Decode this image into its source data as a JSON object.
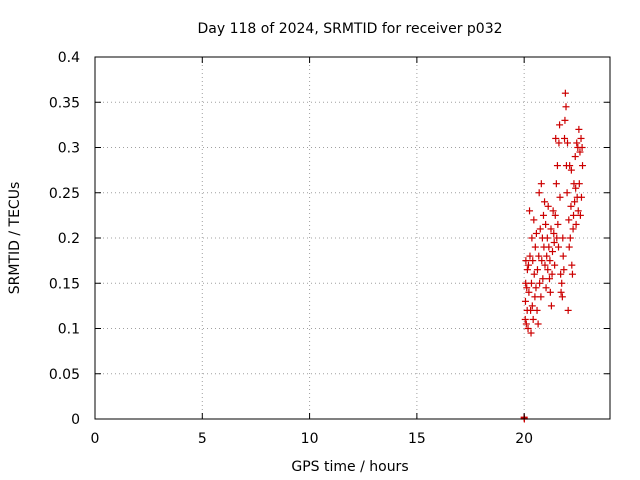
{
  "chart_data": {
    "type": "scatter",
    "title": "Day 118 of 2024, SRMTID for receiver p032",
    "xlabel": "GPS time / hours",
    "ylabel": "SRMTID / TECUs",
    "xlim": [
      0,
      24
    ],
    "ylim": [
      0,
      0.4
    ],
    "xticks": [
      0,
      5,
      10,
      15,
      20
    ],
    "xtick_labels": [
      "0",
      "5",
      "10",
      "15",
      "20"
    ],
    "yticks": [
      0,
      0.05,
      0.1,
      0.15,
      0.2,
      0.25,
      0.3,
      0.35,
      0.4
    ],
    "ytick_labels": [
      "0",
      "0.05",
      "0.1",
      "0.15",
      "0.2",
      "0.25",
      "0.3",
      "0.35",
      "0.4"
    ],
    "grid": true,
    "marker": "plus",
    "color": "#cc0000",
    "series": [
      {
        "values": [
          [
            20.0,
            0.001
          ],
          [
            20.0,
            0.002
          ],
          [
            20.01,
            0.0
          ],
          [
            20.05,
            0.11
          ],
          [
            20.06,
            0.13
          ],
          [
            20.07,
            0.15
          ],
          [
            20.08,
            0.175
          ],
          [
            20.1,
            0.105
          ],
          [
            20.12,
            0.145
          ],
          [
            20.14,
            0.12
          ],
          [
            20.15,
            0.165
          ],
          [
            20.18,
            0.1
          ],
          [
            20.2,
            0.17
          ],
          [
            20.22,
            0.14
          ],
          [
            20.25,
            0.23
          ],
          [
            20.27,
            0.18
          ],
          [
            20.3,
            0.12
          ],
          [
            20.32,
            0.095
          ],
          [
            20.34,
            0.15
          ],
          [
            20.36,
            0.2
          ],
          [
            20.38,
            0.125
          ],
          [
            20.4,
            0.175
          ],
          [
            20.42,
            0.11
          ],
          [
            20.45,
            0.22
          ],
          [
            20.47,
            0.16
          ],
          [
            20.5,
            0.135
          ],
          [
            20.52,
            0.19
          ],
          [
            20.55,
            0.145
          ],
          [
            20.57,
            0.205
          ],
          [
            20.6,
            0.12
          ],
          [
            20.62,
            0.165
          ],
          [
            20.65,
            0.105
          ],
          [
            20.68,
            0.18
          ],
          [
            20.7,
            0.25
          ],
          [
            20.72,
            0.15
          ],
          [
            20.75,
            0.21
          ],
          [
            20.78,
            0.135
          ],
          [
            20.8,
            0.26
          ],
          [
            20.82,
            0.175
          ],
          [
            20.85,
            0.2
          ],
          [
            20.87,
            0.155
          ],
          [
            20.9,
            0.225
          ],
          [
            20.92,
            0.19
          ],
          [
            20.95,
            0.24
          ],
          [
            20.97,
            0.17
          ],
          [
            21.0,
            0.215
          ],
          [
            21.02,
            0.145
          ],
          [
            21.05,
            0.18
          ],
          [
            21.08,
            0.2
          ],
          [
            21.1,
            0.165
          ],
          [
            21.12,
            0.235
          ],
          [
            21.15,
            0.19
          ],
          [
            21.18,
            0.155
          ],
          [
            21.2,
            0.175
          ],
          [
            21.22,
            0.14
          ],
          [
            21.25,
            0.21
          ],
          [
            21.27,
            0.125
          ],
          [
            21.3,
            0.16
          ],
          [
            21.32,
            0.185
          ],
          [
            21.35,
            0.23
          ],
          [
            21.38,
            0.205
          ],
          [
            21.4,
            0.195
          ],
          [
            21.42,
            0.17
          ],
          [
            21.45,
            0.225
          ],
          [
            21.47,
            0.31
          ],
          [
            21.5,
            0.26
          ],
          [
            21.52,
            0.2
          ],
          [
            21.55,
            0.28
          ],
          [
            21.57,
            0.215
          ],
          [
            21.6,
            0.19
          ],
          [
            21.62,
            0.305
          ],
          [
            21.65,
            0.325
          ],
          [
            21.67,
            0.245
          ],
          [
            21.7,
            0.16
          ],
          [
            21.72,
            0.14
          ],
          [
            21.75,
            0.15
          ],
          [
            21.78,
            0.135
          ],
          [
            21.8,
            0.2
          ],
          [
            21.82,
            0.18
          ],
          [
            21.85,
            0.165
          ],
          [
            21.88,
            0.31
          ],
          [
            21.9,
            0.33
          ],
          [
            21.92,
            0.36
          ],
          [
            21.95,
            0.345
          ],
          [
            21.97,
            0.28
          ],
          [
            22.0,
            0.25
          ],
          [
            22.02,
            0.305
          ],
          [
            22.05,
            0.12
          ],
          [
            22.08,
            0.22
          ],
          [
            22.1,
            0.19
          ],
          [
            22.12,
            0.28
          ],
          [
            22.15,
            0.2
          ],
          [
            22.18,
            0.235
          ],
          [
            22.2,
            0.275
          ],
          [
            22.22,
            0.17
          ],
          [
            22.25,
            0.16
          ],
          [
            22.28,
            0.21
          ],
          [
            22.3,
            0.225
          ],
          [
            22.32,
            0.26
          ],
          [
            22.35,
            0.24
          ],
          [
            22.38,
            0.29
          ],
          [
            22.4,
            0.255
          ],
          [
            22.42,
            0.215
          ],
          [
            22.45,
            0.305
          ],
          [
            22.47,
            0.245
          ],
          [
            22.5,
            0.3
          ],
          [
            22.52,
            0.23
          ],
          [
            22.55,
            0.32
          ],
          [
            22.57,
            0.26
          ],
          [
            22.6,
            0.295
          ],
          [
            22.62,
            0.225
          ],
          [
            22.65,
            0.31
          ],
          [
            22.67,
            0.245
          ],
          [
            22.7,
            0.3
          ],
          [
            22.72,
            0.28
          ]
        ]
      }
    ]
  }
}
